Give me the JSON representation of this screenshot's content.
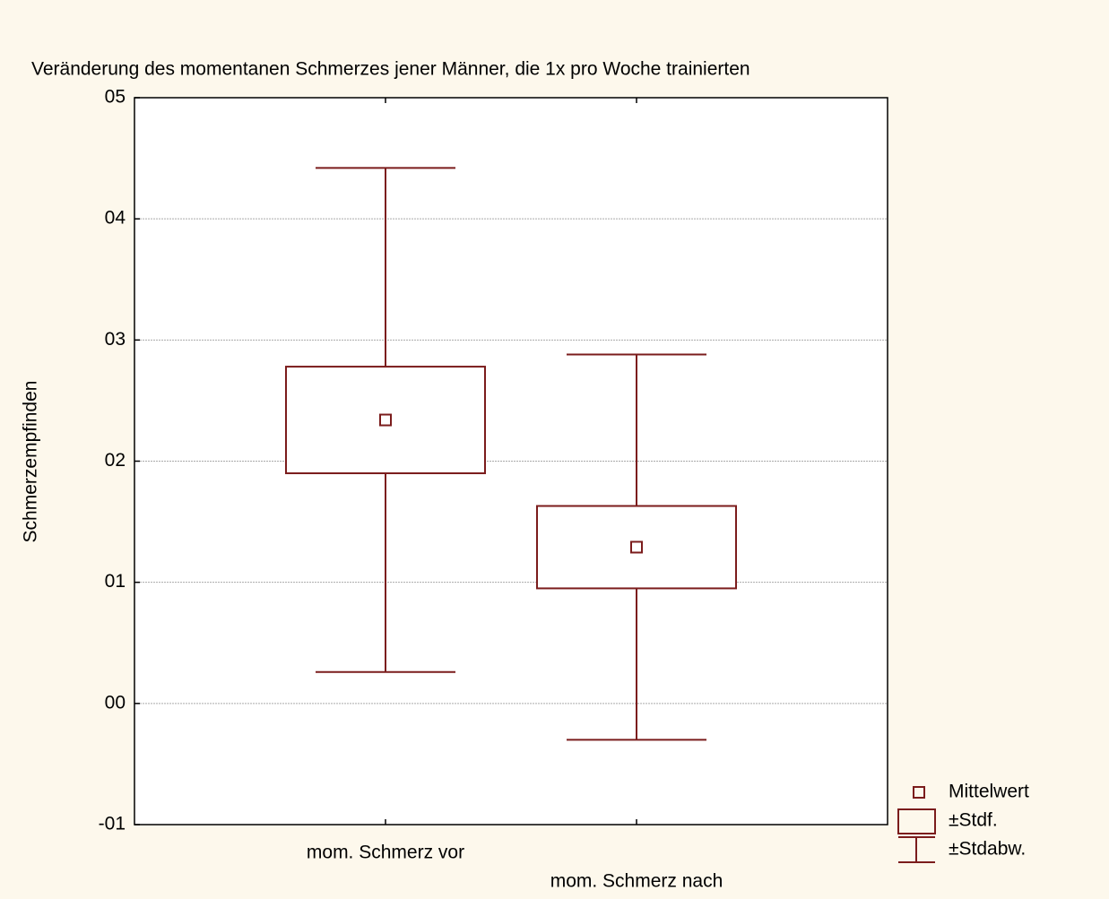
{
  "chart_data": {
    "type": "box",
    "title": "Veränderung des momentanen Schmerzes jener Männer, die 1x pro Woche trainierten",
    "y_label": "Schmerzempfinden",
    "categories": [
      "mom. Schmerz vor",
      "mom. Schmerz nach"
    ],
    "mean": [
      2.34,
      1.29
    ],
    "se": [
      0.44,
      0.34
    ],
    "sd": [
      2.08,
      1.59
    ],
    "legend_labels": [
      "Mittelwert",
      "±Stdf.",
      "±Stdabw."
    ],
    "color": "#7b1c1c",
    "ylim": [
      -1,
      5
    ],
    "yticks": [
      {
        "value": -1,
        "label": "-01"
      },
      {
        "value": 0,
        "label": "00"
      },
      {
        "value": 1,
        "label": "01"
      },
      {
        "value": 2,
        "label": "02"
      },
      {
        "value": 3,
        "label": "03"
      },
      {
        "value": 4,
        "label": "04"
      },
      {
        "value": 5,
        "label": "05"
      }
    ],
    "grid": true
  }
}
